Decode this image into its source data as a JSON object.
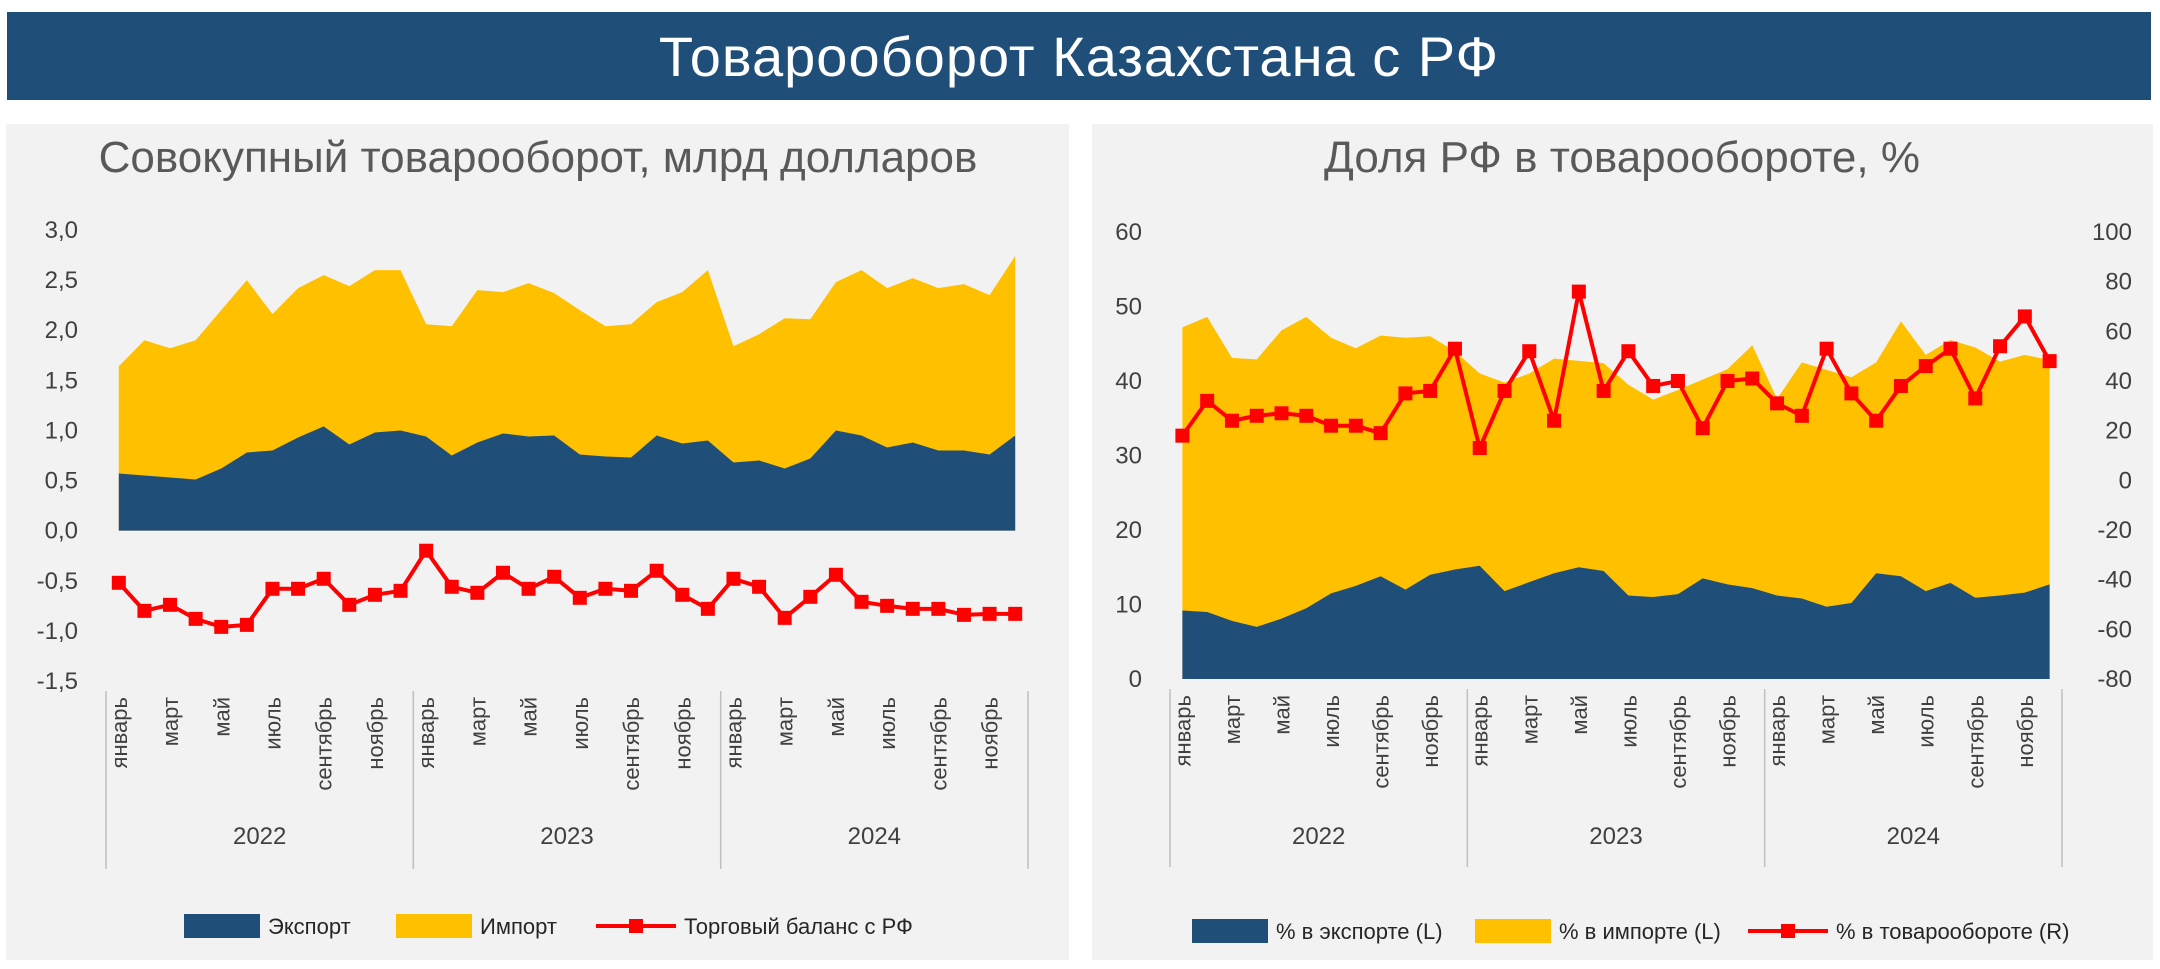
{
  "header": {
    "title": "Товарооборот Казахстана с РФ"
  },
  "colors": {
    "navy": "#1f4e79",
    "gold": "#ffc000",
    "red": "#ff0000",
    "banner": "#1f4e79",
    "panel": "#f2f2f2"
  },
  "chart_data": [
    {
      "type": "area",
      "title": "Совокупный товарооборот, млрд долларов",
      "years": [
        "2022",
        "2023",
        "2024"
      ],
      "month_labels": [
        "январь",
        "март",
        "май",
        "июль",
        "сентябрь",
        "ноябрь"
      ],
      "yticks": [
        "3,0",
        "2,5",
        "2,0",
        "1,5",
        "1,0",
        "0,5",
        "0,0",
        "-0,5",
        "-1,0",
        "-1,5"
      ],
      "ylim": [
        -1.5,
        3.0
      ],
      "legend": [
        "Экспорт",
        "Импорт",
        "Торговый баланс с РФ"
      ],
      "legend_position": "bottom",
      "series": [
        {
          "name": "Экспорт",
          "kind": "area",
          "values": [
            0.57,
            0.55,
            0.53,
            0.51,
            0.62,
            0.78,
            0.8,
            0.93,
            1.04,
            0.86,
            0.98,
            1.0,
            0.94,
            0.75,
            0.88,
            0.97,
            0.94,
            0.95,
            0.76,
            0.74,
            0.73,
            0.95,
            0.87,
            0.9,
            0.68,
            0.7,
            0.62,
            0.72,
            1.0,
            0.95,
            0.83,
            0.88,
            0.8,
            0.8,
            0.76,
            0.95
          ]
        },
        {
          "name": "Импорт",
          "kind": "area_total",
          "values": [
            1.64,
            1.9,
            1.82,
            1.9,
            2.2,
            2.5,
            2.16,
            2.42,
            2.55,
            2.44,
            2.6,
            2.6,
            2.06,
            2.04,
            2.4,
            2.38,
            2.47,
            2.37,
            2.2,
            2.04,
            2.06,
            2.28,
            2.38,
            2.6,
            1.84,
            1.96,
            2.12,
            2.11,
            2.48,
            2.6,
            2.42,
            2.52,
            2.42,
            2.46,
            2.35,
            2.74
          ]
        },
        {
          "name": "Торговый баланс с РФ",
          "kind": "line",
          "values": [
            -0.52,
            -0.8,
            -0.74,
            -0.88,
            -0.96,
            -0.94,
            -0.58,
            -0.58,
            -0.48,
            -0.74,
            -0.64,
            -0.6,
            -0.2,
            -0.56,
            -0.62,
            -0.42,
            -0.58,
            -0.46,
            -0.67,
            -0.58,
            -0.6,
            -0.4,
            -0.64,
            -0.78,
            -0.48,
            -0.56,
            -0.87,
            -0.66,
            -0.44,
            -0.71,
            -0.75,
            -0.78,
            -0.78,
            -0.84,
            -0.83,
            -0.83
          ]
        }
      ]
    },
    {
      "type": "area",
      "title": "Доля РФ в товарообороте, %",
      "years": [
        "2022",
        "2023",
        "2024"
      ],
      "month_labels": [
        "январь",
        "март",
        "май",
        "июль",
        "сентябрь",
        "ноябрь"
      ],
      "yticks_left": [
        "60",
        "50",
        "40",
        "30",
        "20",
        "10",
        "0"
      ],
      "yticks_right": [
        "100",
        "80",
        "60",
        "40",
        "20",
        "0",
        "-20",
        "-40",
        "-60",
        "-80"
      ],
      "ylim_left": [
        0,
        60
      ],
      "ylim_right": [
        -80,
        100
      ],
      "legend": [
        "% в экспорте (L)",
        "% в импорте (L)",
        "% в товарообороте (R)"
      ],
      "legend_position": "bottom",
      "series": [
        {
          "name": "% в экспорте (L)",
          "kind": "area",
          "axis": "left",
          "values": [
            9.2,
            9,
            7.8,
            7,
            8.1,
            9.5,
            11.5,
            12.5,
            13.8,
            12,
            14,
            14.7,
            15.2,
            11.8,
            13,
            14.2,
            15,
            14.5,
            11.2,
            11,
            11.4,
            13.5,
            12.7,
            12.2,
            11.2,
            10.8,
            9.7,
            10.2,
            14.2,
            13.8,
            11.8,
            12.9,
            10.9,
            11.2,
            11.6,
            12.7
          ]
        },
        {
          "name": "% в импорте (L)",
          "kind": "area_total",
          "axis": "left",
          "values": [
            47.2,
            48.6,
            43.1,
            42.9,
            46.8,
            48.6,
            45.8,
            44.4,
            46.1,
            45.8,
            46,
            44,
            41,
            39.8,
            41,
            43,
            42.7,
            42.4,
            39.5,
            37.5,
            38.8,
            40.2,
            41.6,
            44.8,
            37.6,
            42.5,
            41.5,
            40.5,
            42.5,
            48,
            43.5,
            45.5,
            44.5,
            42.6,
            43.5,
            42.8
          ]
        },
        {
          "name": "% в товарообороте (R)",
          "kind": "line",
          "axis": "right",
          "values": [
            18,
            32,
            24,
            26,
            27,
            26,
            22,
            22,
            19,
            35,
            36,
            53,
            13,
            36,
            52,
            24,
            76,
            36,
            52,
            38,
            40,
            21,
            40,
            41,
            31,
            26,
            53,
            35,
            24,
            38,
            46,
            53,
            33,
            54,
            66,
            48
          ]
        }
      ]
    }
  ]
}
